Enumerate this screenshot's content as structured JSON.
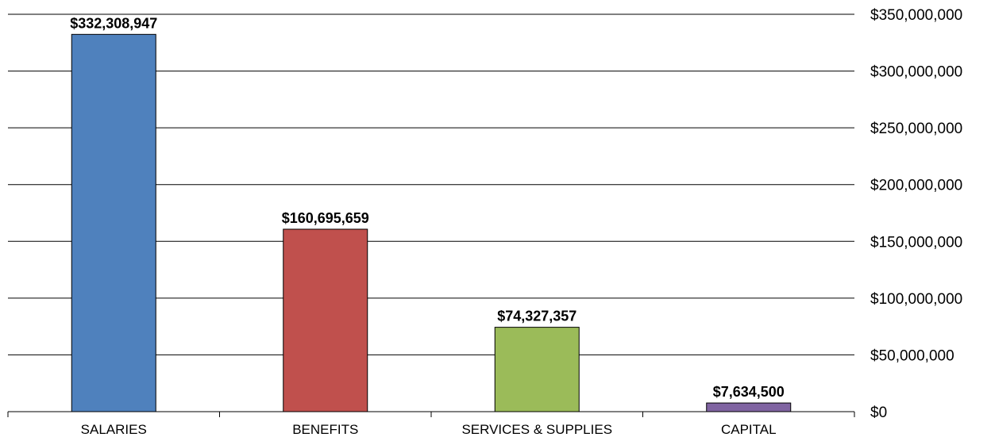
{
  "chart_data": {
    "type": "bar",
    "categories": [
      "SALARIES",
      "BENEFITS",
      "SERVICES & SUPPLIES",
      "CAPITAL"
    ],
    "values": [
      332308947,
      160695659,
      74327357,
      7634500
    ],
    "data_labels": [
      "$332,308,947",
      "$160,695,659",
      "$74,327,357",
      "$7,634,500"
    ],
    "colors": [
      "#4f81bd",
      "#c0504d",
      "#9bbb59",
      "#8064a2"
    ],
    "ylim": [
      0,
      350000000
    ],
    "yticks": [
      0,
      50000000,
      100000000,
      150000000,
      200000000,
      250000000,
      300000000,
      350000000
    ],
    "ytick_labels": [
      "$0",
      "$50,000,000",
      "$100,000,000",
      "$150,000,000",
      "$200,000,000",
      "$250,000,000",
      "$300,000,000",
      "$350,000,000"
    ],
    "y_axis_side": "right",
    "grid": true,
    "title": "",
    "xlabel": "",
    "ylabel": ""
  }
}
